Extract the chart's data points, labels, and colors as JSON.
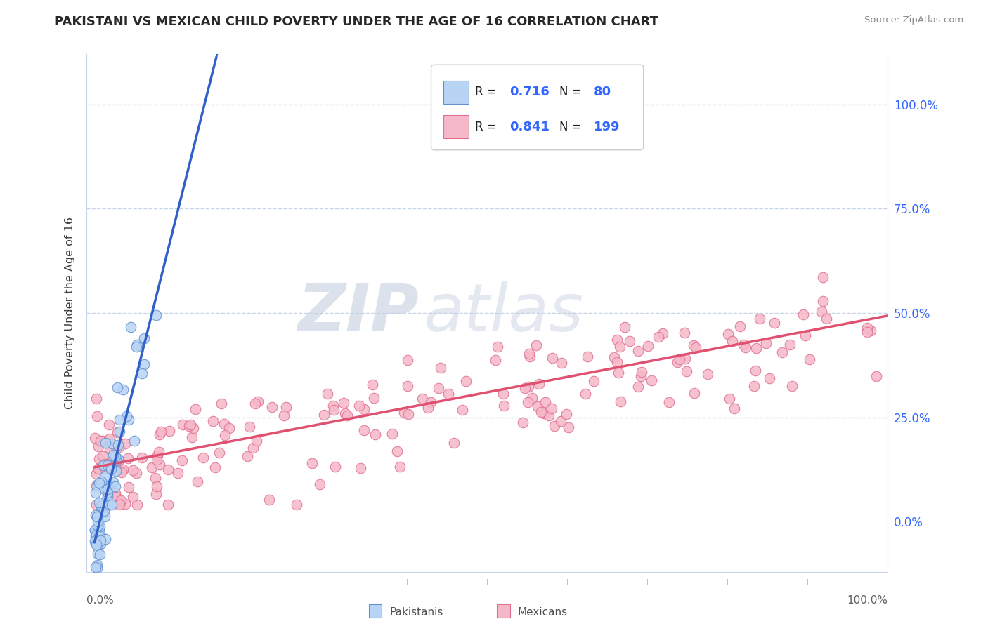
{
  "title": "PAKISTANI VS MEXICAN CHILD POVERTY UNDER THE AGE OF 16 CORRELATION CHART",
  "source_text": "Source: ZipAtlas.com",
  "ylabel": "Child Poverty Under the Age of 16",
  "xlim": [
    -0.01,
    1.01
  ],
  "ylim": [
    -0.12,
    1.12
  ],
  "xtick_pos": [
    0,
    0.25,
    0.5,
    0.75,
    1.0
  ],
  "xtick_labels_bottom": [
    "0.0%",
    "",
    "",
    "",
    "100.0%"
  ],
  "ytick_pos": [
    0,
    0.25,
    0.5,
    0.75,
    1.0
  ],
  "ytick_labels_right": [
    "0.0%",
    "25.0%",
    "50.0%",
    "75.0%",
    "100.0%"
  ],
  "pakistani_color": "#b8d4f5",
  "pakistani_edge": "#6090d0",
  "mexican_color": "#f5b8c8",
  "mexican_edge": "#e07090",
  "regression_blue": "#3060c8",
  "regression_pink": "#e05070",
  "legend_R1": "0.716",
  "legend_N1": "80",
  "legend_R2": "0.841",
  "legend_N2": "199",
  "legend_color": "#3366ff",
  "watermark_zip": "ZIP",
  "watermark_atlas": "atlas",
  "background_color": "#ffffff",
  "grid_color": "#c8d4e8",
  "title_color": "#282828",
  "axis_label_color": "#404040",
  "right_ytick_color": "#3366ff",
  "source_color": "#888888",
  "pakistani_seed": 42,
  "mexican_seed": 123,
  "pak_slope": 7.5,
  "pak_intercept": -0.05,
  "mex_slope": 0.36,
  "mex_intercept": 0.13
}
